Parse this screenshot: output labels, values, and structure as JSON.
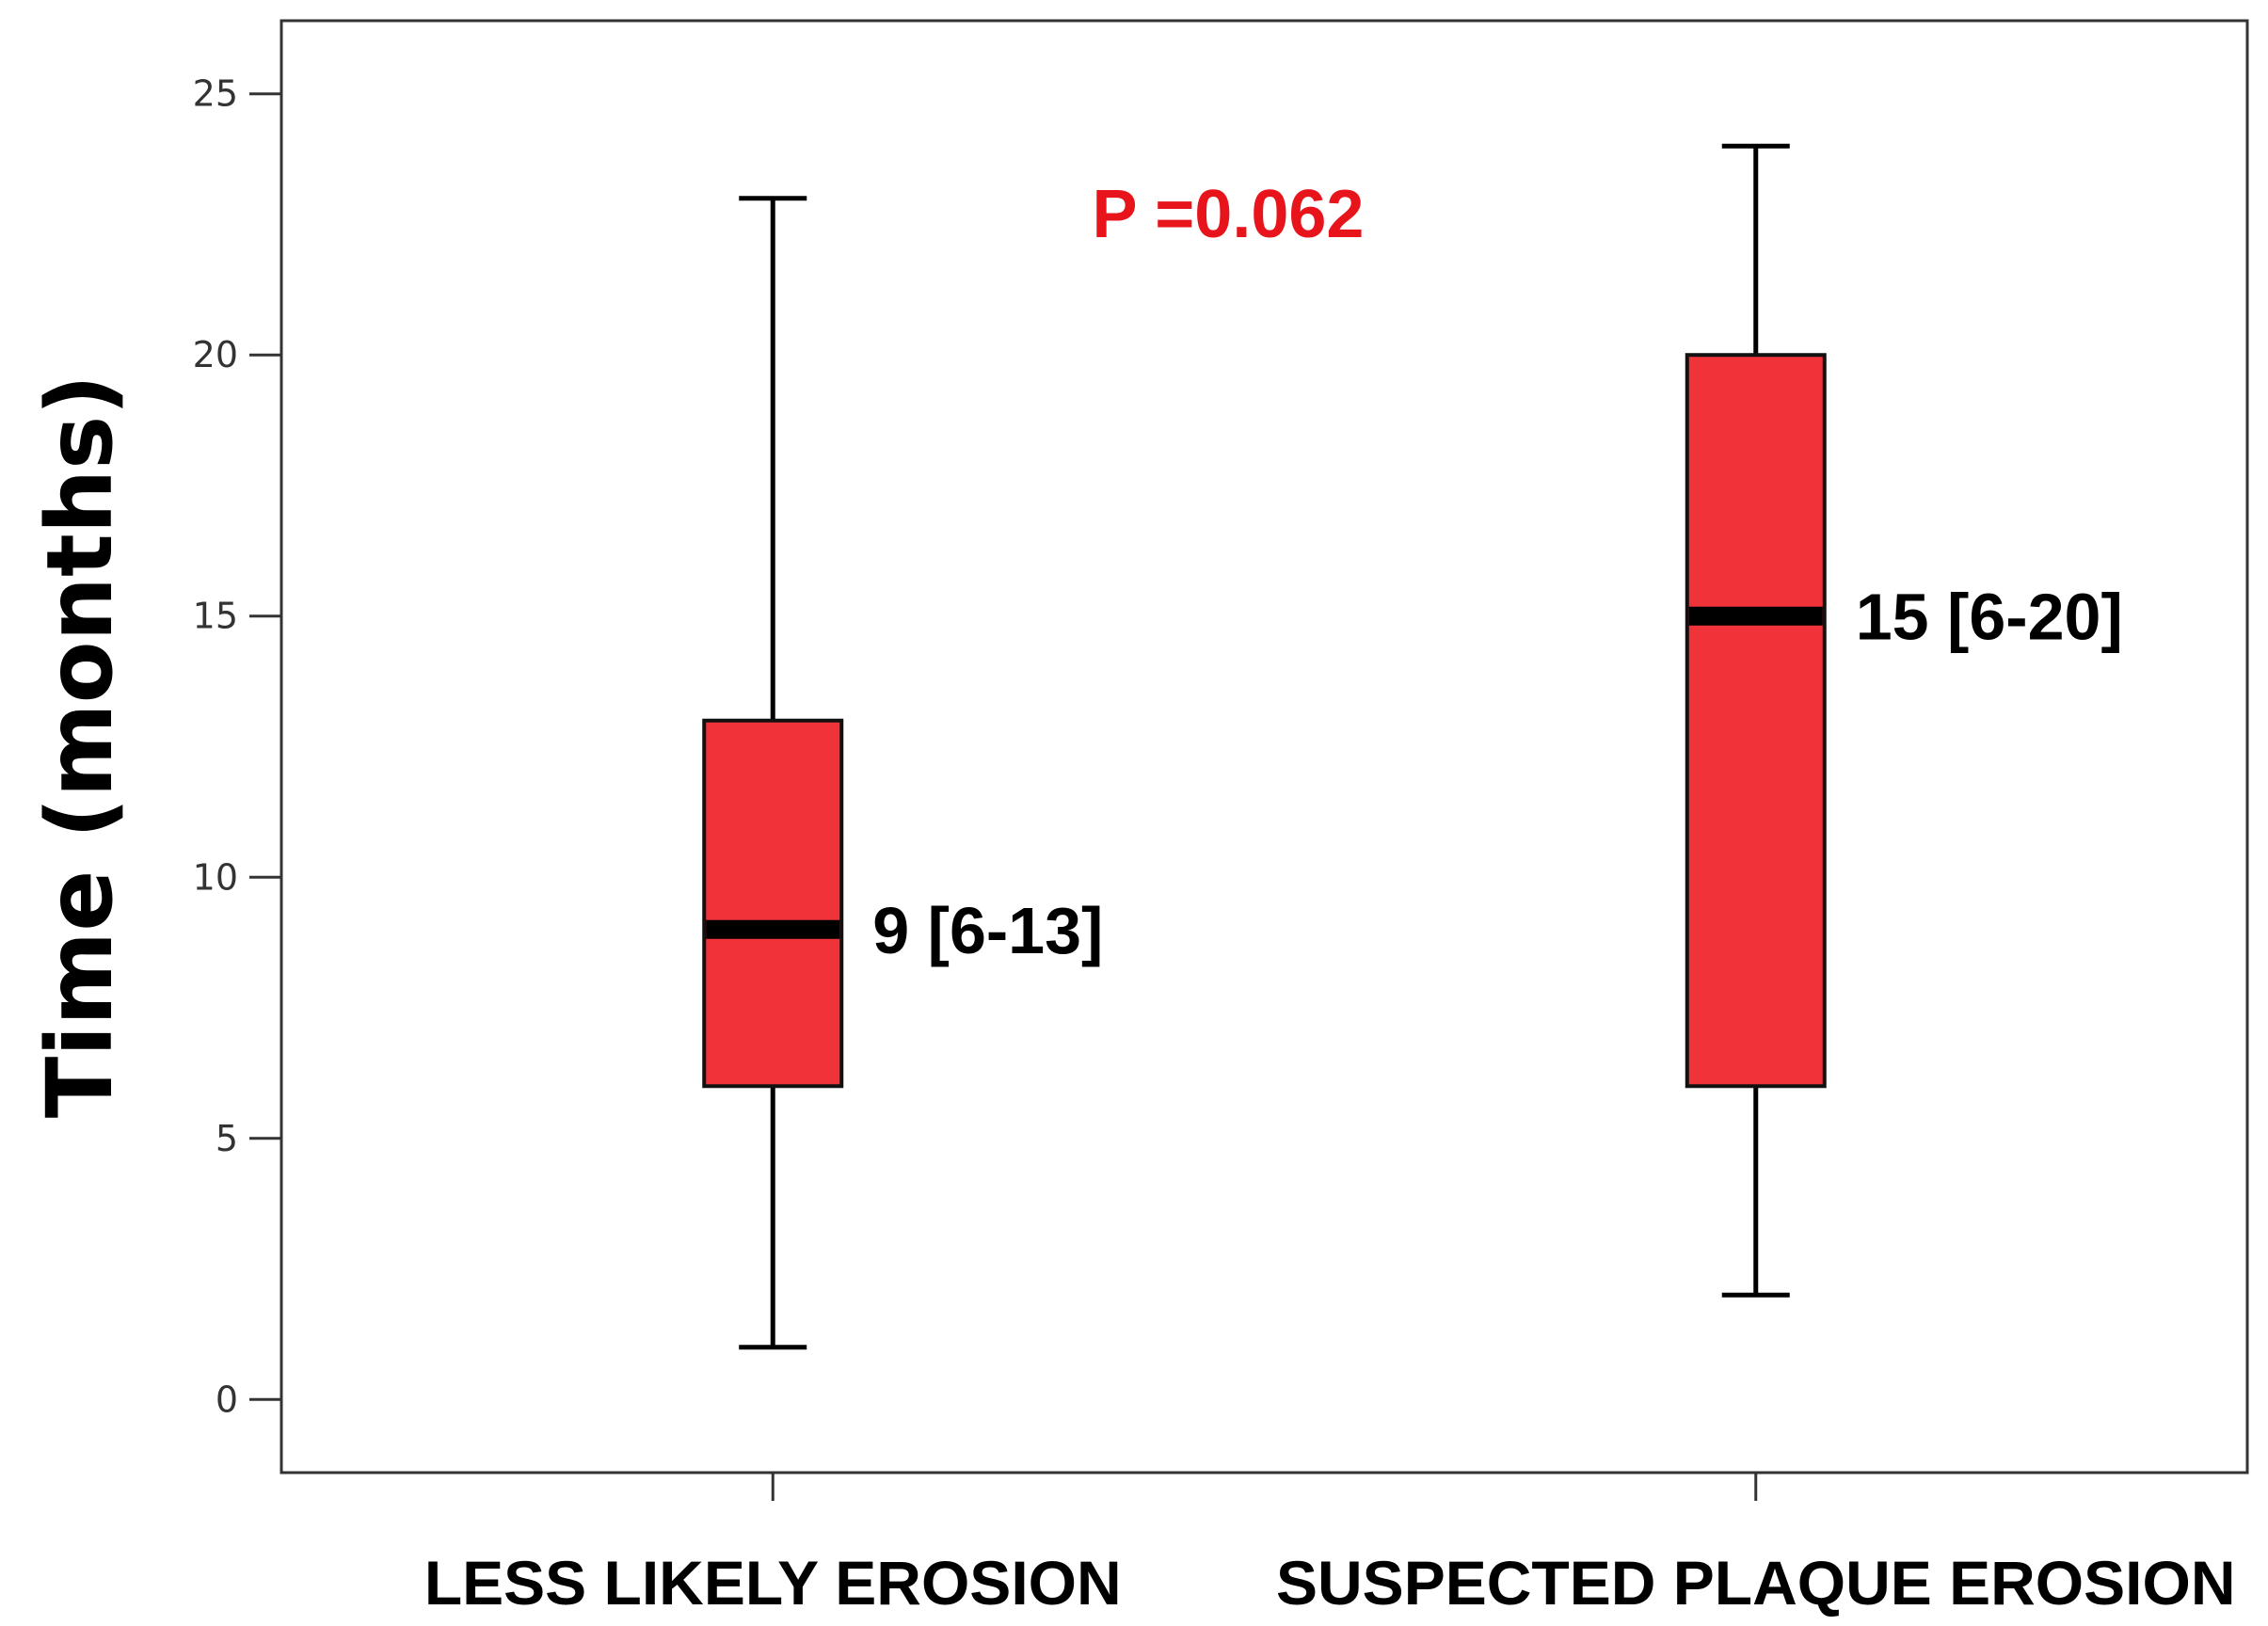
{
  "chart_data": {
    "type": "box",
    "ylabel": "Time (months)",
    "xlabel": "",
    "ylim": [
      -1.4,
      26.4
    ],
    "yticks": [
      0,
      5,
      10,
      15,
      20,
      25
    ],
    "grid": false,
    "box_color": "#ef3339",
    "median_color": "#000000",
    "categories": [
      "LESS LIKELY EROSION",
      "SUSPECTED PLAQUE EROSION"
    ],
    "boxes": [
      {
        "whisker_low": 1,
        "q1": 6,
        "median": 9,
        "q3": 13,
        "whisker_high": 23,
        "label": "9 [6-13]"
      },
      {
        "whisker_low": 2,
        "q1": 6,
        "median": 15,
        "q3": 20,
        "whisker_high": 24,
        "label": "15 [6-20]"
      }
    ],
    "annotation": {
      "text": "P =0.062",
      "color": "#e8141b"
    }
  }
}
